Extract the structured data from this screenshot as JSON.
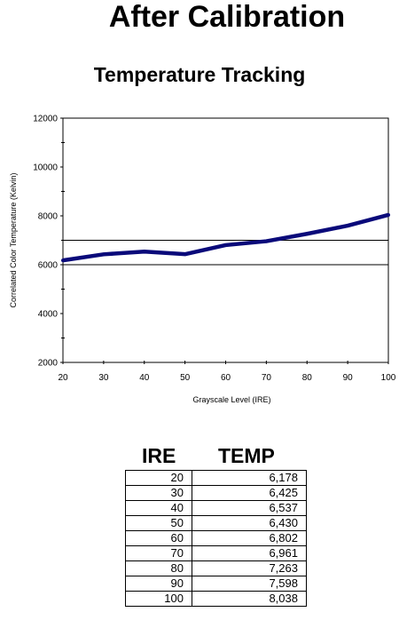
{
  "title": "After Calibration",
  "chart_data": {
    "type": "line",
    "title": "Temperature Tracking",
    "xlabel": "Grayscale Level (IRE)",
    "ylabel": "Correlated Color Temperature (Kelvin)",
    "xlim": [
      20,
      100
    ],
    "ylim": [
      2000,
      12000
    ],
    "x_ticks": [
      20,
      30,
      40,
      50,
      60,
      70,
      80,
      90,
      100
    ],
    "y_ticks": [
      2000,
      4000,
      6000,
      8000,
      10000,
      12000
    ],
    "reference_lines": [
      6000,
      7000
    ],
    "x": [
      20,
      30,
      40,
      50,
      60,
      70,
      80,
      90,
      100
    ],
    "series": [
      {
        "values": [
          6178,
          6425,
          6537,
          6430,
          6802,
          6961,
          7263,
          7598,
          8038
        ],
        "color": "#0a0a7a"
      }
    ]
  },
  "table": {
    "headers": [
      "IRE",
      "TEMP"
    ],
    "rows": [
      [
        "20",
        "6,178"
      ],
      [
        "30",
        "6,425"
      ],
      [
        "40",
        "6,537"
      ],
      [
        "50",
        "6,430"
      ],
      [
        "60",
        "6,802"
      ],
      [
        "70",
        "6,961"
      ],
      [
        "80",
        "7,263"
      ],
      [
        "90",
        "7,598"
      ],
      [
        "100",
        "8,038"
      ]
    ]
  }
}
